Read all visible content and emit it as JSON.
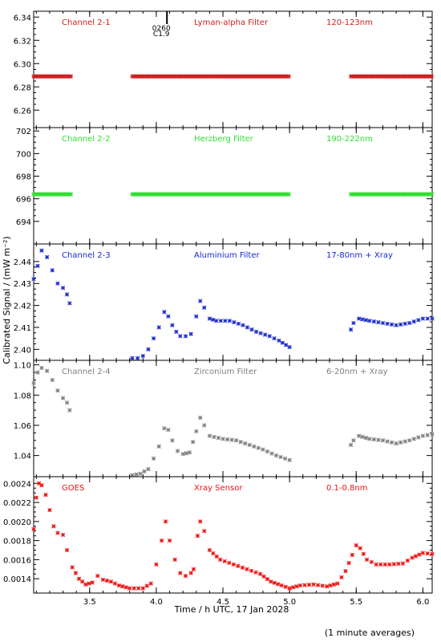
{
  "figure": {
    "ylabel": "Calibrated Signal / (mW m⁻²)",
    "xlabel": "Time / h UTC, 17 Jan 2028",
    "note": "(1 minute averages)",
    "xlim": [
      3.08,
      6.07
    ],
    "xticks": [
      3.5,
      4.0,
      4.5,
      5.0,
      5.5,
      6.0
    ],
    "xtick_labels": [
      "3.5",
      "4.0",
      "4.5",
      "5.0",
      "5.5",
      "6.0"
    ]
  },
  "flare_marker": {
    "x": 4.08,
    "time_label": "0260",
    "class_label": "C1.9"
  },
  "chart_data": [
    {
      "type": "scatter",
      "panel": "Channel 2-1",
      "filter": "Lyman-alpha Filter",
      "band": "120-123nm",
      "color": "#cc2222",
      "ylim": [
        6.245,
        6.345
      ],
      "yticks": [
        6.26,
        6.28,
        6.3,
        6.32,
        6.34
      ],
      "ytick_labels": [
        "6.26",
        "6.28",
        "6.30",
        "6.32",
        "6.34"
      ],
      "segments": [
        {
          "x_start": 3.08,
          "x_end": 3.36,
          "value": 6.289
        },
        {
          "x_start": 3.82,
          "x_end": 5.0,
          "value": 6.289
        },
        {
          "x_start": 5.46,
          "x_end": 6.07,
          "value": 6.289
        }
      ]
    },
    {
      "type": "scatter",
      "panel": "Channel 2-2",
      "filter": "Herzberg Filter",
      "band": "190-222nm",
      "color": "#33dd33",
      "ylim": [
        692.0,
        702.3
      ],
      "yticks": [
        694,
        696,
        698,
        700,
        702
      ],
      "ytick_labels": [
        "694",
        "696",
        "698",
        "700",
        "702"
      ],
      "segments": [
        {
          "x_start": 3.08,
          "x_end": 3.36,
          "value": 696.4
        },
        {
          "x_start": 3.82,
          "x_end": 5.0,
          "value": 696.4
        },
        {
          "x_start": 5.46,
          "x_end": 6.07,
          "value": 696.4
        }
      ]
    },
    {
      "type": "scatter",
      "panel": "Channel 2-3",
      "filter": "Aluminium Filter",
      "band": "17-80nm + Xray",
      "color": "#1a2acc",
      "ylim": [
        2.395,
        2.448
      ],
      "yticks": [
        2.4,
        2.41,
        2.42,
        2.43,
        2.44
      ],
      "ytick_labels": [
        "2.40",
        "2.41",
        "2.42",
        "2.43",
        "2.44"
      ],
      "curves": [
        [
          [
            3.08,
            2.432
          ],
          [
            3.11,
            2.438
          ],
          [
            3.14,
            2.445
          ],
          [
            3.18,
            2.442
          ],
          [
            3.22,
            2.436
          ],
          [
            3.26,
            2.43
          ],
          [
            3.3,
            2.428
          ],
          [
            3.33,
            2.425
          ],
          [
            3.35,
            2.421
          ]
        ],
        [
          [
            3.82,
            2.396
          ],
          [
            3.86,
            2.396
          ],
          [
            3.9,
            2.397
          ],
          [
            3.94,
            2.4
          ],
          [
            3.98,
            2.405
          ],
          [
            4.02,
            2.41
          ],
          [
            4.06,
            2.417
          ],
          [
            4.09,
            2.415
          ],
          [
            4.12,
            2.411
          ],
          [
            4.15,
            2.408
          ],
          [
            4.18,
            2.406
          ],
          [
            4.22,
            2.406
          ],
          [
            4.26,
            2.407
          ],
          [
            4.3,
            2.415
          ],
          [
            4.33,
            2.422
          ],
          [
            4.36,
            2.419
          ],
          [
            4.4,
            2.414
          ],
          [
            4.45,
            2.413
          ],
          [
            4.55,
            2.413
          ],
          [
            4.65,
            2.411
          ],
          [
            4.75,
            2.408
          ],
          [
            4.85,
            2.406
          ],
          [
            4.92,
            2.404
          ],
          [
            5.0,
            2.401
          ]
        ],
        [
          [
            5.46,
            2.409
          ],
          [
            5.48,
            2.412
          ],
          [
            5.52,
            2.414
          ],
          [
            5.6,
            2.413
          ],
          [
            5.7,
            2.412
          ],
          [
            5.8,
            2.411
          ],
          [
            5.9,
            2.412
          ],
          [
            6.0,
            2.414
          ],
          [
            6.07,
            2.414
          ]
        ]
      ]
    },
    {
      "type": "scatter",
      "panel": "Channel 2-4",
      "filter": "Zirconium Filter",
      "band": "6-20nm + Xray",
      "color": "#808080",
      "ylim": [
        1.026,
        1.103
      ],
      "yticks": [
        1.04,
        1.06,
        1.08,
        1.1
      ],
      "ytick_labels": [
        "1.04",
        "1.06",
        "1.08",
        "1.10"
      ],
      "curves": [
        [
          [
            3.08,
            1.088
          ],
          [
            3.11,
            1.095
          ],
          [
            3.14,
            1.098
          ],
          [
            3.18,
            1.096
          ],
          [
            3.22,
            1.09
          ],
          [
            3.26,
            1.083
          ],
          [
            3.3,
            1.078
          ],
          [
            3.33,
            1.075
          ],
          [
            3.35,
            1.07
          ]
        ],
        [
          [
            3.82,
            1.027
          ],
          [
            3.88,
            1.028
          ],
          [
            3.94,
            1.031
          ],
          [
            3.98,
            1.038
          ],
          [
            4.02,
            1.046
          ],
          [
            4.06,
            1.058
          ],
          [
            4.09,
            1.057
          ],
          [
            4.12,
            1.05
          ],
          [
            4.16,
            1.043
          ],
          [
            4.2,
            1.041
          ],
          [
            4.25,
            1.042
          ],
          [
            4.3,
            1.056
          ],
          [
            4.33,
            1.065
          ],
          [
            4.36,
            1.06
          ],
          [
            4.4,
            1.053
          ],
          [
            4.5,
            1.051
          ],
          [
            4.6,
            1.05
          ],
          [
            4.7,
            1.047
          ],
          [
            4.8,
            1.044
          ],
          [
            4.9,
            1.04
          ],
          [
            5.0,
            1.037
          ]
        ],
        [
          [
            5.46,
            1.047
          ],
          [
            5.48,
            1.05
          ],
          [
            5.52,
            1.053
          ],
          [
            5.6,
            1.051
          ],
          [
            5.7,
            1.05
          ],
          [
            5.8,
            1.048
          ],
          [
            5.9,
            1.05
          ],
          [
            6.0,
            1.053
          ],
          [
            6.07,
            1.054
          ]
        ]
      ]
    },
    {
      "type": "scatter",
      "panel": "GOES",
      "filter": "Xray Sensor",
      "band": "0.1-0.8nm",
      "color": "#ee1111",
      "ylim": [
        0.00125,
        0.00247
      ],
      "yticks": [
        0.0014,
        0.0016,
        0.0018,
        0.002,
        0.0022,
        0.0024
      ],
      "ytick_labels": [
        "0.0014",
        "0.0016",
        "0.0018",
        "0.0020",
        "0.0022",
        "0.0024"
      ],
      "curves": [
        [
          [
            3.08,
            0.00192
          ],
          [
            3.1,
            0.00225
          ],
          [
            3.12,
            0.0024
          ],
          [
            3.14,
            0.00238
          ],
          [
            3.17,
            0.00228
          ],
          [
            3.2,
            0.00212
          ],
          [
            3.23,
            0.00195
          ],
          [
            3.26,
            0.00188
          ],
          [
            3.3,
            0.00186
          ],
          [
            3.33,
            0.0017
          ],
          [
            3.37,
            0.00152
          ],
          [
            3.42,
            0.0014
          ],
          [
            3.47,
            0.00134
          ],
          [
            3.52,
            0.00136
          ],
          [
            3.56,
            0.00143
          ],
          [
            3.6,
            0.00139
          ],
          [
            3.66,
            0.00137
          ],
          [
            3.72,
            0.00133
          ],
          [
            3.8,
            0.0013
          ],
          [
            3.9,
            0.0013
          ],
          [
            3.96,
            0.00135
          ],
          [
            4.0,
            0.00155
          ],
          [
            4.04,
            0.0018
          ],
          [
            4.07,
            0.002
          ],
          [
            4.1,
            0.0018
          ],
          [
            4.14,
            0.0016
          ],
          [
            4.18,
            0.00146
          ],
          [
            4.22,
            0.00143
          ],
          [
            4.26,
            0.00146
          ],
          [
            4.28,
            0.0015
          ],
          [
            4.31,
            0.00185
          ],
          [
            4.33,
            0.002
          ],
          [
            4.36,
            0.0019
          ],
          [
            4.4,
            0.0017
          ],
          [
            4.48,
            0.0016
          ],
          [
            4.58,
            0.00155
          ],
          [
            4.68,
            0.0015
          ],
          [
            4.78,
            0.00145
          ],
          [
            4.86,
            0.00137
          ],
          [
            4.94,
            0.00133
          ],
          [
            5.0,
            0.0013
          ],
          [
            5.08,
            0.00133
          ],
          [
            5.18,
            0.00134
          ],
          [
            5.28,
            0.00132
          ],
          [
            5.36,
            0.00135
          ],
          [
            5.42,
            0.00148
          ],
          [
            5.47,
            0.00165
          ],
          [
            5.5,
            0.00175
          ],
          [
            5.53,
            0.00172
          ],
          [
            5.58,
            0.0016
          ],
          [
            5.65,
            0.00155
          ],
          [
            5.75,
            0.00155
          ],
          [
            5.85,
            0.00156
          ],
          [
            5.92,
            0.00162
          ],
          [
            6.0,
            0.00167
          ],
          [
            6.07,
            0.00166
          ]
        ]
      ]
    }
  ]
}
